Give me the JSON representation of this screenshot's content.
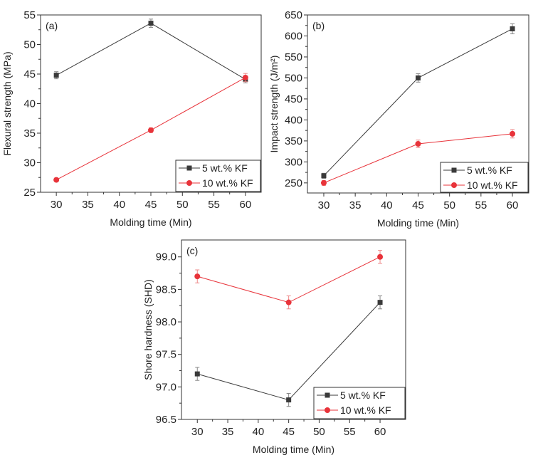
{
  "chart_data": [
    {
      "type": "line",
      "panel_label": "(a)",
      "xlabel": "Molding time (Min)",
      "ylabel": "Flexural strength (MPa)",
      "x": [
        30,
        45,
        60
      ],
      "xlim": [
        27.5,
        62.5
      ],
      "ylim": [
        25,
        55
      ],
      "xticks": [
        30,
        35,
        40,
        45,
        50,
        55,
        60
      ],
      "yticks": [
        25,
        30,
        35,
        40,
        45,
        50,
        55
      ],
      "ytick_labels": [
        "25",
        "30",
        "35",
        "40",
        "45",
        "50",
        "55"
      ],
      "legend_position": "bottom-right",
      "series": [
        {
          "name": "5 wt.% KF",
          "color": "#3a3a3a",
          "marker": "square",
          "values": [
            44.8,
            53.6,
            44.1
          ],
          "errors": [
            0.6,
            0.7,
            0.6
          ]
        },
        {
          "name": "10 wt.% KF",
          "color": "#e8333a",
          "marker": "circle",
          "values": [
            27.1,
            35.5,
            44.4
          ],
          "errors": [
            0.3,
            0.4,
            0.7
          ]
        }
      ]
    },
    {
      "type": "line",
      "panel_label": "(b)",
      "xlabel": "Molding time (Min)",
      "ylabel": "Impact strength (J/m²)",
      "x": [
        30,
        45,
        60
      ],
      "xlim": [
        27.4,
        62.6
      ],
      "ylim": [
        226,
        650
      ],
      "xticks": [
        30,
        35,
        40,
        45,
        50,
        55,
        60
      ],
      "yticks": [
        250,
        300,
        350,
        400,
        450,
        500,
        550,
        600,
        650
      ],
      "ytick_labels": [
        "250",
        "300",
        "350",
        "400",
        "450",
        "500",
        "550",
        "600",
        "650"
      ],
      "legend_position": "bottom-right",
      "series": [
        {
          "name": "5 wt.% KF",
          "color": "#3a3a3a",
          "marker": "square",
          "values": [
            267,
            500,
            617
          ],
          "errors": [
            6,
            10,
            12
          ]
        },
        {
          "name": "10 wt.% KF",
          "color": "#e8333a",
          "marker": "circle",
          "values": [
            250,
            343,
            367
          ],
          "errors": [
            6,
            9,
            10
          ]
        }
      ]
    },
    {
      "type": "line",
      "panel_label": "(c)",
      "xlabel": "Molding time (Min)",
      "ylabel": "Shore hardness (SHD)",
      "x": [
        30,
        45,
        60
      ],
      "xlim": [
        27.4,
        64.2
      ],
      "ylim": [
        96.5,
        99.26
      ],
      "xticks": [
        30,
        35,
        40,
        45,
        50,
        55,
        60
      ],
      "yticks": [
        96.5,
        97.0,
        97.5,
        98.0,
        98.5,
        99.0
      ],
      "ytick_labels": [
        "96.5",
        "97.0",
        "97.5",
        "98.0",
        "98.5",
        "99.0"
      ],
      "legend_position": "bottom-right",
      "series": [
        {
          "name": "5 wt.% KF",
          "color": "#3a3a3a",
          "marker": "square",
          "values": [
            97.2,
            96.8,
            98.3
          ],
          "errors": [
            0.1,
            0.1,
            0.1
          ]
        },
        {
          "name": "10 wt.% KF",
          "color": "#e8333a",
          "marker": "circle",
          "values": [
            98.7,
            98.3,
            99.0
          ],
          "errors": [
            0.1,
            0.1,
            0.1
          ]
        }
      ]
    }
  ]
}
